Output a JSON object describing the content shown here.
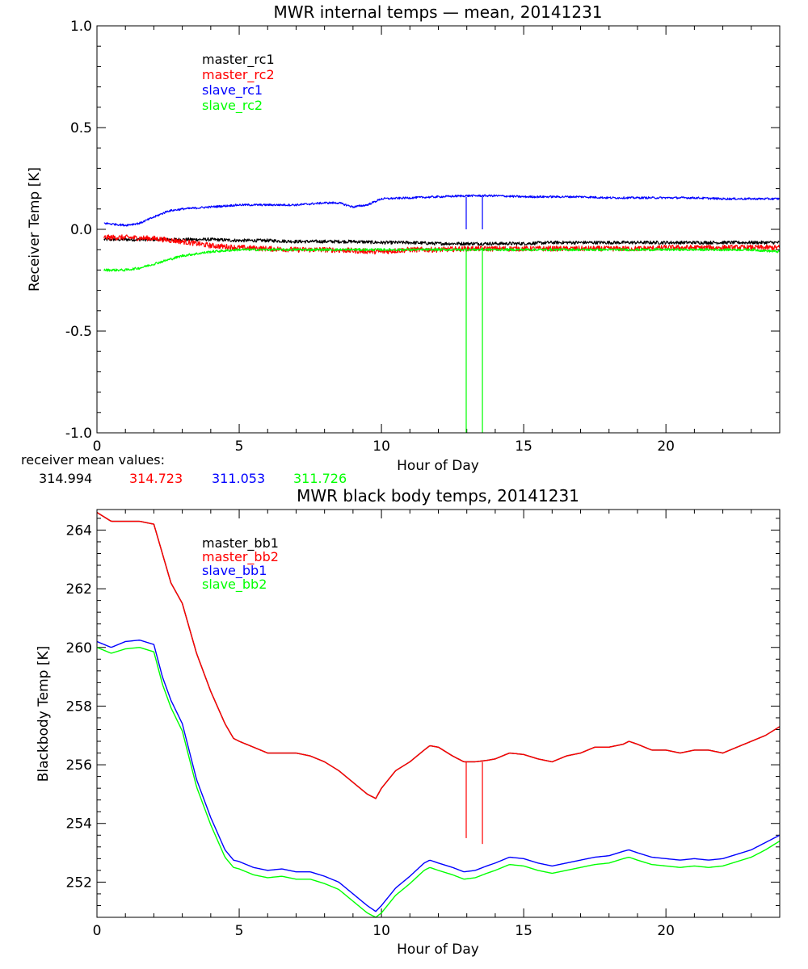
{
  "chart_data": [
    {
      "type": "line",
      "title": "MWR internal temps — mean, 20141231",
      "xlabel": "Hour of Day",
      "ylabel": "Receiver Temp [K]",
      "xlim": [
        0,
        24
      ],
      "ylim": [
        -1.0,
        1.0
      ],
      "x_ticks": [
        0,
        5,
        10,
        15,
        20
      ],
      "x_tick_labels": [
        "0",
        "5",
        "10",
        "15",
        "20"
      ],
      "y_ticks": [
        -1.0,
        -0.5,
        0.0,
        0.5,
        1.0
      ],
      "y_tick_labels": [
        "-1.0",
        "-0.5",
        "0.0",
        "0.5",
        "1.0"
      ],
      "legend_location": "top-left",
      "series": [
        {
          "name": "master_rc1",
          "color": "#000000",
          "noise": 0.008,
          "x": [
            0.25,
            1,
            2,
            3,
            4,
            5,
            6,
            7,
            8,
            9,
            10,
            11,
            12,
            13,
            14,
            15,
            16,
            17,
            18,
            19,
            20,
            21,
            22,
            23,
            24
          ],
          "y": [
            -0.05,
            -0.05,
            -0.05,
            -0.05,
            -0.05,
            -0.055,
            -0.055,
            -0.06,
            -0.06,
            -0.06,
            -0.065,
            -0.065,
            -0.07,
            -0.07,
            -0.07,
            -0.07,
            -0.065,
            -0.065,
            -0.065,
            -0.065,
            -0.065,
            -0.065,
            -0.065,
            -0.065,
            -0.065
          ]
        },
        {
          "name": "master_rc2",
          "color": "#ff0000",
          "noise": 0.013,
          "x": [
            0.25,
            1,
            2,
            3,
            4,
            5,
            6,
            7,
            8,
            9,
            10,
            11,
            12,
            13,
            14,
            15,
            16,
            17,
            18,
            19,
            20,
            21,
            22,
            23,
            24
          ],
          "y": [
            -0.04,
            -0.04,
            -0.045,
            -0.06,
            -0.08,
            -0.09,
            -0.095,
            -0.1,
            -0.1,
            -0.105,
            -0.11,
            -0.1,
            -0.1,
            -0.095,
            -0.095,
            -0.095,
            -0.095,
            -0.095,
            -0.095,
            -0.095,
            -0.09,
            -0.09,
            -0.09,
            -0.09,
            -0.09
          ]
        },
        {
          "name": "slave_rc1",
          "color": "#0000ff",
          "noise": 0.005,
          "x": [
            0.25,
            1,
            1.5,
            2,
            2.5,
            3,
            4,
            5,
            6,
            7,
            8,
            8.5,
            9,
            9.5,
            10,
            11,
            12,
            13,
            14,
            15,
            16,
            17,
            18,
            19,
            20,
            21,
            22,
            23,
            24
          ],
          "y": [
            0.03,
            0.02,
            0.03,
            0.06,
            0.09,
            0.1,
            0.11,
            0.12,
            0.12,
            0.12,
            0.13,
            0.13,
            0.11,
            0.12,
            0.15,
            0.155,
            0.16,
            0.165,
            0.165,
            0.16,
            0.16,
            0.16,
            0.155,
            0.155,
            0.155,
            0.155,
            0.15,
            0.15,
            0.15
          ]
        },
        {
          "name": "slave_rc2",
          "color": "#00ff00",
          "noise": 0.006,
          "x": [
            0.25,
            1,
            1.5,
            2,
            2.5,
            3,
            4,
            5,
            6,
            7,
            8,
            9,
            10,
            11,
            12,
            13,
            14,
            15,
            16,
            17,
            18,
            19,
            20,
            21,
            22,
            23,
            24
          ],
          "y": [
            -0.2,
            -0.2,
            -0.19,
            -0.17,
            -0.15,
            -0.13,
            -0.11,
            -0.1,
            -0.1,
            -0.1,
            -0.1,
            -0.1,
            -0.1,
            -0.1,
            -0.1,
            -0.1,
            -0.1,
            -0.1,
            -0.1,
            -0.1,
            -0.1,
            -0.1,
            -0.1,
            -0.1,
            -0.1,
            -0.1,
            -0.11
          ]
        }
      ],
      "spikes": [
        {
          "x": 12.98,
          "y0": 0.16,
          "y1": -1.0,
          "colors": [
            "#0000ff",
            "#00ff00"
          ]
        },
        {
          "x": 13.55,
          "y0": 0.16,
          "y1": -1.0,
          "colors": [
            "#0000ff",
            "#00ff00"
          ]
        }
      ]
    },
    {
      "type": "line",
      "title": "MWR black body temps, 20141231",
      "xlabel": "Hour of Day",
      "ylabel": "Blackbody Temp [K]",
      "xlim": [
        0,
        24
      ],
      "ylim": [
        250.8,
        264.7
      ],
      "x_ticks": [
        0,
        5,
        10,
        15,
        20
      ],
      "x_tick_labels": [
        "0",
        "5",
        "10",
        "15",
        "20"
      ],
      "y_ticks": [
        252,
        254,
        256,
        258,
        260,
        262,
        264
      ],
      "y_tick_labels": [
        "252",
        "254",
        "256",
        "258",
        "260",
        "262",
        "264"
      ],
      "legend_location": "top-left",
      "series": [
        {
          "name": "master_bb1",
          "color": "#000000",
          "noise": 0,
          "x": [
            0,
            0.5,
            1,
            1.5,
            2,
            2.3,
            2.6,
            3,
            3.5,
            4,
            4.5,
            4.8,
            5,
            5.5,
            6,
            6.5,
            7,
            7.5,
            8,
            8.5,
            9,
            9.5,
            9.8,
            10,
            10.5,
            11,
            11.5,
            11.7,
            12,
            12.5,
            12.9,
            13.3,
            13.7,
            14,
            14.5,
            15,
            15.5,
            16,
            16.5,
            17,
            17.5,
            18,
            18.5,
            18.7,
            19,
            19.5,
            20,
            20.5,
            21,
            21.5,
            22,
            22.5,
            23,
            23.5,
            24
          ],
          "y": [
            264.6,
            264.3,
            264.3,
            264.3,
            264.2,
            263.2,
            262.2,
            261.5,
            259.8,
            258.5,
            257.4,
            256.9,
            256.8,
            256.6,
            256.4,
            256.4,
            256.4,
            256.3,
            256.1,
            255.8,
            255.4,
            255.0,
            254.85,
            255.2,
            255.8,
            256.1,
            256.5,
            256.65,
            256.6,
            256.3,
            256.1,
            256.1,
            256.15,
            256.2,
            256.4,
            256.35,
            256.2,
            256.1,
            256.3,
            256.4,
            256.6,
            256.6,
            256.7,
            256.8,
            256.7,
            256.5,
            256.5,
            256.4,
            256.5,
            256.5,
            256.4,
            256.6,
            256.8,
            257.0,
            257.3
          ]
        },
        {
          "name": "master_bb2",
          "color": "#ff0000",
          "noise": 0,
          "x": [
            0,
            0.5,
            1,
            1.5,
            2,
            2.3,
            2.6,
            3,
            3.5,
            4,
            4.5,
            4.8,
            5,
            5.5,
            6,
            6.5,
            7,
            7.5,
            8,
            8.5,
            9,
            9.5,
            9.8,
            10,
            10.5,
            11,
            11.5,
            11.7,
            12,
            12.5,
            12.9,
            13.3,
            13.7,
            14,
            14.5,
            15,
            15.5,
            16,
            16.5,
            17,
            17.5,
            18,
            18.5,
            18.7,
            19,
            19.5,
            20,
            20.5,
            21,
            21.5,
            22,
            22.5,
            23,
            23.5,
            24
          ],
          "y": [
            264.6,
            264.3,
            264.3,
            264.3,
            264.2,
            263.2,
            262.2,
            261.5,
            259.8,
            258.5,
            257.4,
            256.9,
            256.8,
            256.6,
            256.4,
            256.4,
            256.4,
            256.3,
            256.1,
            255.8,
            255.4,
            255.0,
            254.85,
            255.2,
            255.8,
            256.1,
            256.5,
            256.65,
            256.6,
            256.3,
            256.1,
            256.1,
            256.15,
            256.2,
            256.4,
            256.35,
            256.2,
            256.1,
            256.3,
            256.4,
            256.6,
            256.6,
            256.7,
            256.8,
            256.7,
            256.5,
            256.5,
            256.4,
            256.5,
            256.5,
            256.4,
            256.6,
            256.8,
            257.0,
            257.3
          ]
        },
        {
          "name": "slave_bb1",
          "color": "#0000ff",
          "noise": 0,
          "x": [
            0,
            0.5,
            1,
            1.5,
            2,
            2.3,
            2.6,
            3,
            3.5,
            4,
            4.5,
            4.8,
            5,
            5.5,
            6,
            6.5,
            7,
            7.5,
            8,
            8.5,
            9,
            9.5,
            9.8,
            10,
            10.5,
            11,
            11.5,
            11.7,
            12,
            12.5,
            12.9,
            13.3,
            13.7,
            14,
            14.5,
            15,
            15.5,
            16,
            16.5,
            17,
            17.5,
            18,
            18.5,
            18.7,
            19,
            19.5,
            20,
            20.5,
            21,
            21.5,
            22,
            22.5,
            23,
            23.5,
            24
          ],
          "y": [
            260.2,
            260.0,
            260.2,
            260.25,
            260.1,
            259.0,
            258.2,
            257.4,
            255.5,
            254.2,
            253.1,
            252.75,
            252.7,
            252.5,
            252.4,
            252.45,
            252.35,
            252.35,
            252.2,
            252.0,
            251.6,
            251.2,
            251.0,
            251.2,
            251.8,
            252.2,
            252.65,
            252.75,
            252.65,
            252.5,
            252.35,
            252.4,
            252.55,
            252.65,
            252.85,
            252.8,
            252.65,
            252.55,
            252.65,
            252.75,
            252.85,
            252.9,
            253.05,
            253.1,
            253.0,
            252.85,
            252.8,
            252.75,
            252.8,
            252.75,
            252.8,
            252.95,
            253.1,
            253.35,
            253.6
          ]
        },
        {
          "name": "slave_bb2",
          "color": "#00ff00",
          "noise": 0,
          "x": [
            0,
            0.5,
            1,
            1.5,
            2,
            2.3,
            2.6,
            3,
            3.5,
            4,
            4.5,
            4.8,
            5,
            5.5,
            6,
            6.5,
            7,
            7.5,
            8,
            8.5,
            9,
            9.5,
            9.8,
            10,
            10.5,
            11,
            11.5,
            11.7,
            12,
            12.5,
            12.9,
            13.3,
            13.7,
            14,
            14.5,
            15,
            15.5,
            16,
            16.5,
            17,
            17.5,
            18,
            18.5,
            18.7,
            19,
            19.5,
            20,
            20.5,
            21,
            21.5,
            22,
            22.5,
            23,
            23.5,
            24
          ],
          "y": [
            260.0,
            259.8,
            259.95,
            260.0,
            259.85,
            258.75,
            257.95,
            257.15,
            255.25,
            253.95,
            252.85,
            252.5,
            252.45,
            252.25,
            252.15,
            252.2,
            252.1,
            252.1,
            251.95,
            251.75,
            251.35,
            250.95,
            250.8,
            250.95,
            251.55,
            251.95,
            252.4,
            252.5,
            252.4,
            252.25,
            252.1,
            252.15,
            252.3,
            252.4,
            252.6,
            252.55,
            252.4,
            252.3,
            252.4,
            252.5,
            252.6,
            252.65,
            252.8,
            252.85,
            252.75,
            252.6,
            252.55,
            252.5,
            252.55,
            252.5,
            252.55,
            252.7,
            252.85,
            253.1,
            253.4
          ]
        }
      ],
      "spikes": [
        {
          "x": 12.98,
          "y0": 256.1,
          "y1": 253.5,
          "colors": [
            "#ff0000"
          ]
        },
        {
          "x": 13.55,
          "y0": 256.1,
          "y1": 253.3,
          "colors": [
            "#ff0000"
          ]
        }
      ]
    }
  ],
  "receiver_mean": {
    "label": "receiver mean values:",
    "values": [
      {
        "text": "314.994",
        "color": "#000000"
      },
      {
        "text": "314.723",
        "color": "#ff0000"
      },
      {
        "text": "311.053",
        "color": "#0000ff"
      },
      {
        "text": "311.726",
        "color": "#00ff00"
      }
    ]
  }
}
